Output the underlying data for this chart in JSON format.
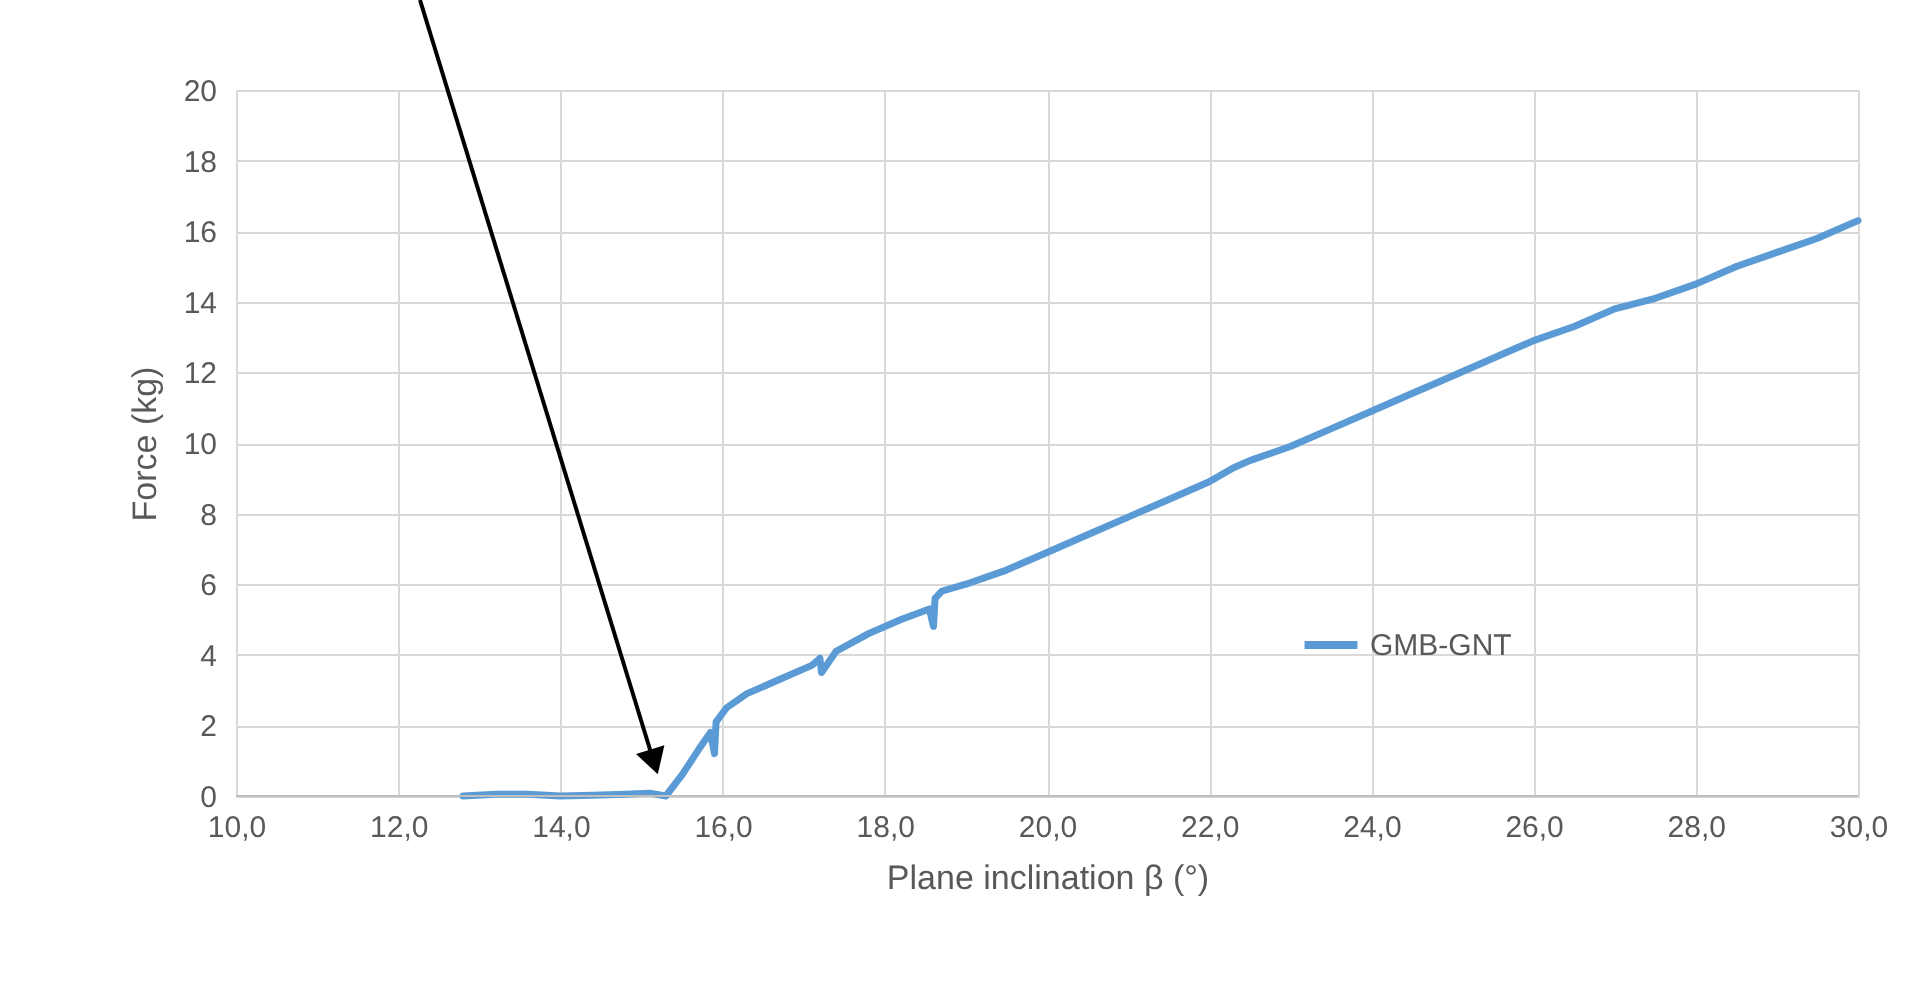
{
  "chart_data": {
    "type": "line",
    "xlabel": "Plane inclination β (°)",
    "ylabel": "Force (kg)",
    "xlim": [
      10,
      30
    ],
    "xticks": [
      {
        "value": 10,
        "label": "10,0"
      },
      {
        "value": 12,
        "label": "12,0"
      },
      {
        "value": 14,
        "label": "14,0"
      },
      {
        "value": 16,
        "label": "16,0"
      },
      {
        "value": 18,
        "label": "18,0"
      },
      {
        "value": 20,
        "label": "20,0"
      },
      {
        "value": 22,
        "label": "22,0"
      },
      {
        "value": 24,
        "label": "24,0"
      },
      {
        "value": 26,
        "label": "26,0"
      },
      {
        "value": 28,
        "label": "28,0"
      },
      {
        "value": 30,
        "label": "30,0"
      }
    ],
    "ylim": [
      0,
      20
    ],
    "yticks": [
      0,
      2,
      4,
      6,
      8,
      10,
      12,
      14,
      16,
      18,
      20
    ],
    "grid": true,
    "legend": "right",
    "marker": "none",
    "line_style": "solid",
    "series": [
      {
        "name": "GMB-GNT",
        "color": "#5b9bd5",
        "x": [
          12.8,
          13.2,
          13.6,
          14.0,
          14.4,
          14.8,
          15.1,
          15.3,
          15.5,
          15.7,
          15.85,
          15.9,
          15.92,
          16.05,
          16.3,
          16.7,
          17.1,
          17.2,
          17.22,
          17.4,
          17.8,
          18.2,
          18.55,
          18.6,
          18.62,
          18.7,
          19.0,
          19.5,
          20.0,
          20.5,
          21.0,
          21.5,
          22.0,
          22.3,
          22.5,
          23.0,
          23.5,
          24.0,
          24.5,
          25.0,
          25.5,
          26.0,
          26.5,
          27.0,
          27.5,
          28.0,
          28.5,
          29.0,
          29.5,
          30.0
        ],
        "values": [
          0.0,
          0.05,
          0.05,
          0.0,
          0.02,
          0.05,
          0.08,
          0.0,
          0.6,
          1.3,
          1.8,
          1.2,
          2.1,
          2.5,
          2.9,
          3.3,
          3.7,
          3.9,
          3.5,
          4.1,
          4.6,
          5.0,
          5.3,
          4.8,
          5.6,
          5.8,
          6.0,
          6.4,
          6.9,
          7.4,
          7.9,
          8.4,
          8.9,
          9.3,
          9.5,
          9.9,
          10.4,
          10.9,
          11.4,
          11.9,
          12.4,
          12.9,
          13.3,
          13.8,
          14.1,
          14.5,
          15.0,
          15.4,
          15.8,
          16.3
        ]
      }
    ]
  }
}
